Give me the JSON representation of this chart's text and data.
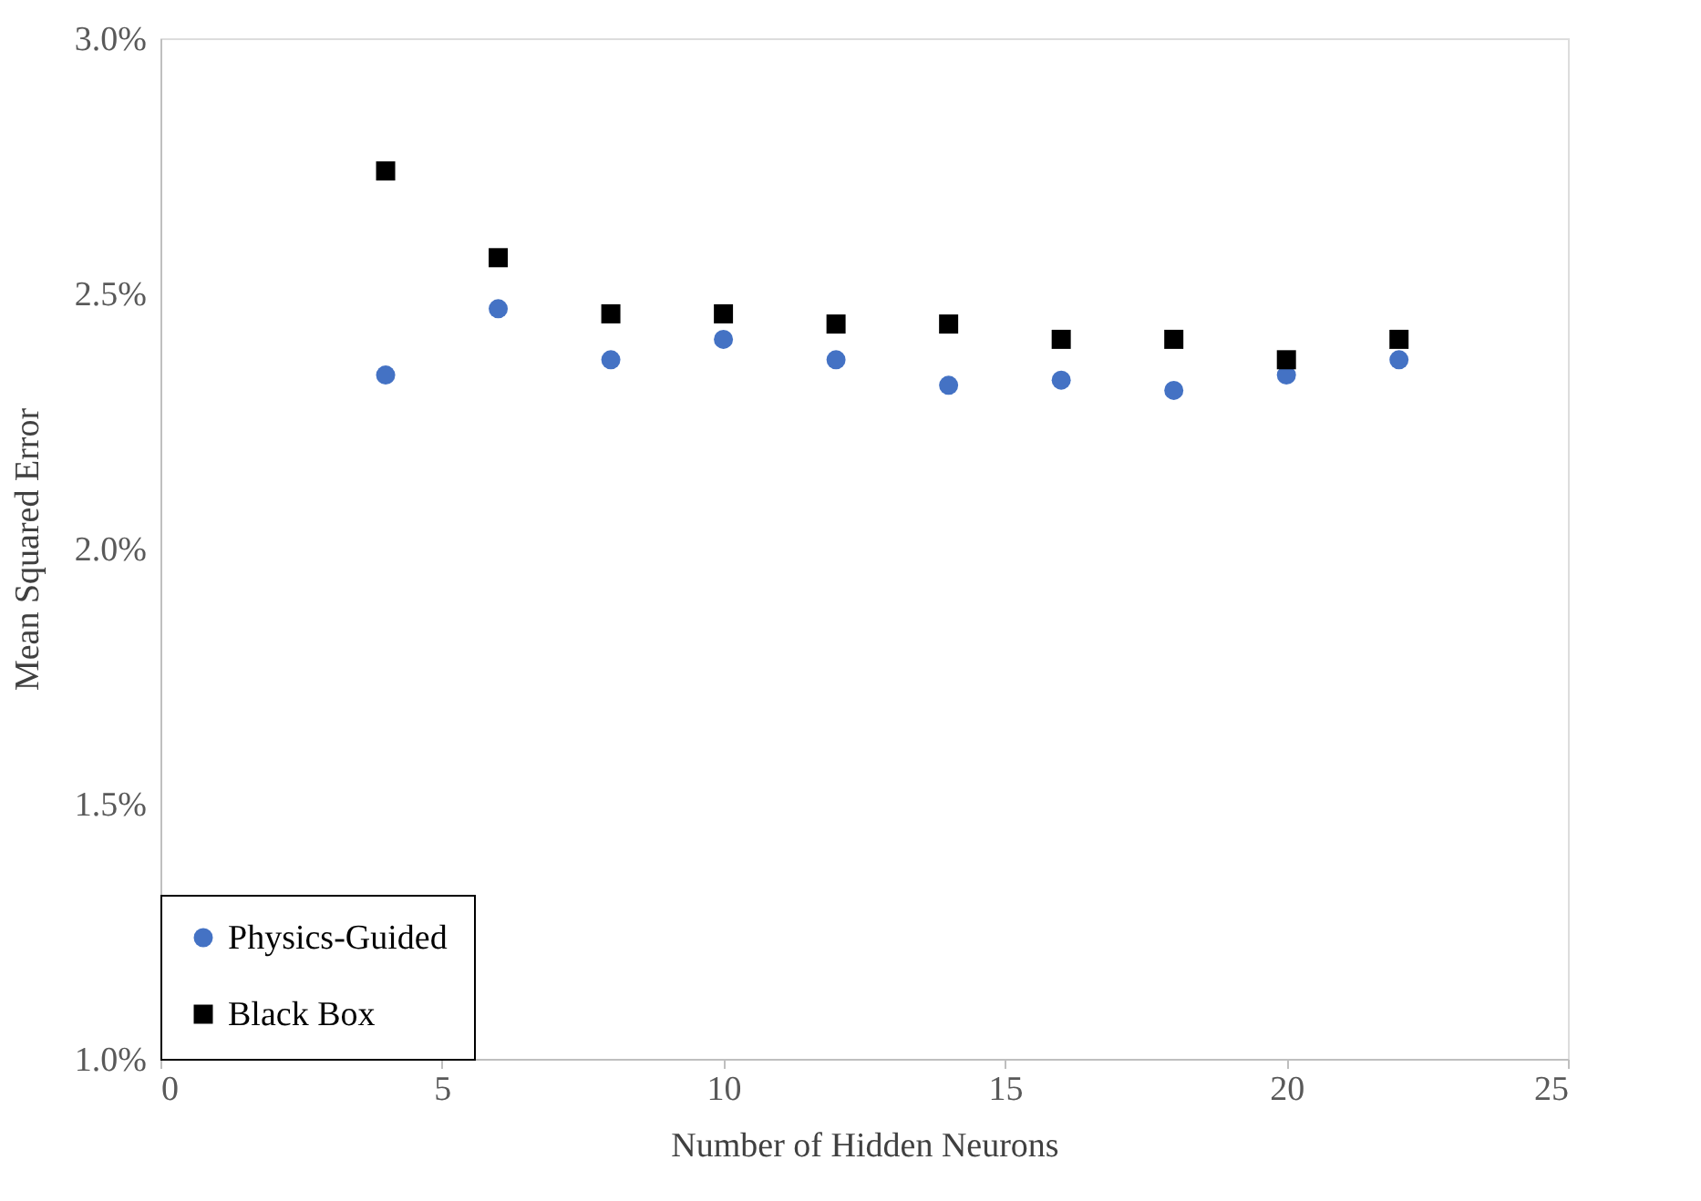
{
  "chart_data": {
    "type": "scatter",
    "xlabel": "Number of Hidden Neurons",
    "ylabel": "Mean Squared Error",
    "x": [
      4,
      6,
      8,
      10,
      12,
      14,
      16,
      18,
      20,
      22
    ],
    "series": [
      {
        "name": "Physics-Guided",
        "color": "#4472c4",
        "marker": "circle",
        "values": [
          2.34,
          2.47,
          2.37,
          2.41,
          2.37,
          2.32,
          2.33,
          2.31,
          2.34,
          2.37
        ]
      },
      {
        "name": "Black Box",
        "color": "#000000",
        "marker": "square",
        "values": [
          2.74,
          2.57,
          2.46,
          2.46,
          2.44,
          2.44,
          2.41,
          2.41,
          2.37,
          2.41
        ]
      }
    ],
    "xlim": [
      0,
      25
    ],
    "xticks": [
      0,
      5,
      10,
      15,
      20,
      25
    ],
    "ylim": [
      1.0,
      3.0
    ],
    "yticks": [
      {
        "value": 1.0,
        "label": "1.0%"
      },
      {
        "value": 1.5,
        "label": "1.5%"
      },
      {
        "value": 2.0,
        "label": "2.0%"
      },
      {
        "value": 2.5,
        "label": "2.5%"
      },
      {
        "value": 3.0,
        "label": "3.0%"
      }
    ],
    "grid": false,
    "legend": "bottom left"
  }
}
